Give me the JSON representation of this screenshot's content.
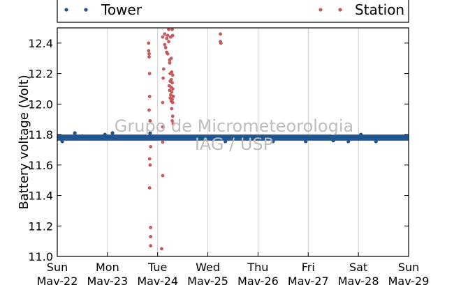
{
  "chart_data": {
    "type": "scatter",
    "ylabel": "Battery voltage (Volt)",
    "xlabel": "",
    "ylim": [
      11.0,
      12.5
    ],
    "y_ticks": [
      11.0,
      11.2,
      11.4,
      11.6,
      11.8,
      12.0,
      12.2,
      12.4
    ],
    "xlim": [
      0,
      7
    ],
    "x_ticks": [
      {
        "day": "Sun",
        "date": "Mav-22"
      },
      {
        "day": "Mon",
        "date": "Mav-23"
      },
      {
        "day": "Tue",
        "date": "Mav-24"
      },
      {
        "day": "Wed",
        "date": "Mav-25"
      },
      {
        "day": "Thu",
        "date": "Mav-26"
      },
      {
        "day": "Fri",
        "date": "Mav-27"
      },
      {
        "day": "Sat",
        "date": "Mav-28"
      },
      {
        "day": "Sun",
        "date": "Mav-29"
      }
    ],
    "grid": "vertical",
    "legend": {
      "placement": "top, outside plot"
    },
    "watermark": [
      "Grupo de Micrometeorologia",
      "IAG / USP"
    ],
    "series": [
      {
        "name": "Tower",
        "color": "#1f5591",
        "band": {
          "x_start": 0,
          "x_end": 7,
          "y_low": 11.76,
          "y_high": 11.8
        },
        "points": [
          [
            0.1,
            11.755
          ],
          [
            0.35,
            11.81
          ],
          [
            0.5,
            11.79
          ],
          [
            0.95,
            11.8
          ],
          [
            1.1,
            11.81
          ],
          [
            1.85,
            11.81
          ],
          [
            3.35,
            11.755
          ],
          [
            4.3,
            11.755
          ],
          [
            4.95,
            11.755
          ],
          [
            5.5,
            11.76
          ],
          [
            5.8,
            11.755
          ],
          [
            6.05,
            11.8
          ],
          [
            6.35,
            11.755
          ]
        ]
      },
      {
        "name": "Station",
        "color": "#c9585c",
        "points": [
          [
            1.82,
            12.4
          ],
          [
            1.82,
            12.35
          ],
          [
            1.83,
            12.33
          ],
          [
            1.83,
            12.31
          ],
          [
            1.84,
            12.2
          ],
          [
            1.84,
            12.05
          ],
          [
            1.83,
            11.96
          ],
          [
            1.85,
            11.89
          ],
          [
            1.86,
            11.72
          ],
          [
            1.84,
            11.64
          ],
          [
            1.85,
            11.6
          ],
          [
            1.84,
            11.45
          ],
          [
            1.86,
            11.19
          ],
          [
            1.86,
            11.13
          ],
          [
            1.86,
            11.07
          ],
          [
            2.08,
            11.05
          ],
          [
            2.1,
            11.53
          ],
          [
            2.1,
            11.75
          ],
          [
            2.1,
            11.85
          ],
          [
            2.1,
            12.01
          ],
          [
            2.11,
            12.17
          ],
          [
            2.12,
            12.23
          ],
          [
            2.1,
            12.44
          ],
          [
            2.14,
            12.46
          ],
          [
            2.18,
            12.43
          ],
          [
            2.2,
            12.45
          ],
          [
            2.14,
            12.39
          ],
          [
            2.16,
            12.37
          ],
          [
            2.18,
            12.34
          ],
          [
            2.2,
            12.33
          ],
          [
            2.22,
            12.41
          ],
          [
            2.22,
            12.49
          ],
          [
            2.29,
            12.49
          ],
          [
            2.24,
            12.29
          ],
          [
            2.24,
            12.27
          ],
          [
            2.27,
            12.3
          ],
          [
            2.25,
            12.2
          ],
          [
            2.28,
            12.21
          ],
          [
            2.3,
            12.19
          ],
          [
            2.27,
            12.16
          ],
          [
            2.25,
            12.15
          ],
          [
            2.29,
            12.14
          ],
          [
            2.23,
            12.12
          ],
          [
            2.27,
            12.11
          ],
          [
            2.3,
            12.1
          ],
          [
            2.24,
            12.09
          ],
          [
            2.28,
            12.08
          ],
          [
            2.26,
            12.06
          ],
          [
            2.31,
            12.05
          ],
          [
            2.25,
            12.04
          ],
          [
            2.29,
            12.03
          ],
          [
            2.27,
            12.02
          ],
          [
            2.3,
            12.01
          ],
          [
            2.28,
            11.97
          ],
          [
            2.3,
            11.92
          ],
          [
            2.29,
            11.89
          ],
          [
            2.31,
            11.87
          ],
          [
            2.26,
            12.44
          ],
          [
            2.3,
            12.45
          ],
          [
            3.25,
            12.46
          ],
          [
            3.25,
            12.41
          ],
          [
            3.26,
            12.4
          ]
        ]
      }
    ]
  }
}
